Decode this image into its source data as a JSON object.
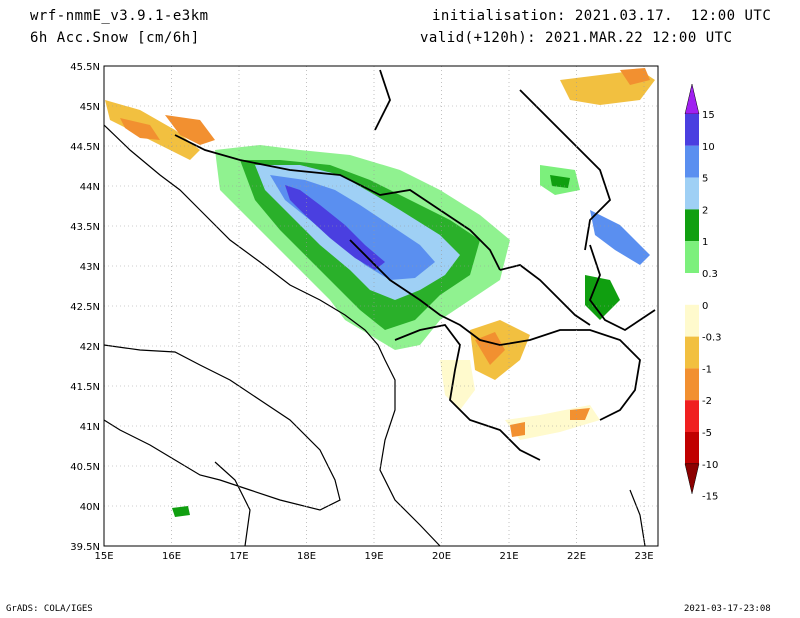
{
  "header": {
    "model": "wrf-nmmE_v3.9.1-e3km",
    "field": "6h Acc.Snow [cm/6h]",
    "init": "initialisation: 2021.03.17.  12:00 UTC",
    "valid": "valid(+120h): 2021.MAR.22 12:00 UTC"
  },
  "footer": {
    "credit": "GrADS: COLA/IGES",
    "timestamp": "2021-03-17-23:08"
  },
  "map": {
    "lat_labels": [
      "45.5N",
      "45N",
      "44.5N",
      "44N",
      "43.5N",
      "43N",
      "42.5N",
      "42N",
      "41.5N",
      "41N",
      "40.5N",
      "40N",
      "39.5N"
    ],
    "lon_labels": [
      "15E",
      "16E",
      "17E",
      "18E",
      "19E",
      "20E",
      "21E",
      "22E",
      "23E"
    ]
  },
  "legend": {
    "labels": [
      "15",
      "10",
      "5",
      "2",
      "1",
      "0.3",
      "0",
      "-0.3",
      "-1",
      "-2",
      "-5",
      "-10",
      "-15"
    ],
    "colors": [
      "#a020f0",
      "#4a3fe0",
      "#5a8ff0",
      "#9fd0f5",
      "#109f10",
      "#7cf07c",
      "#ffffff",
      "#fffacd",
      "#f2c040",
      "#f29030",
      "#f02020",
      "#c00000",
      "#8b0000"
    ]
  }
}
